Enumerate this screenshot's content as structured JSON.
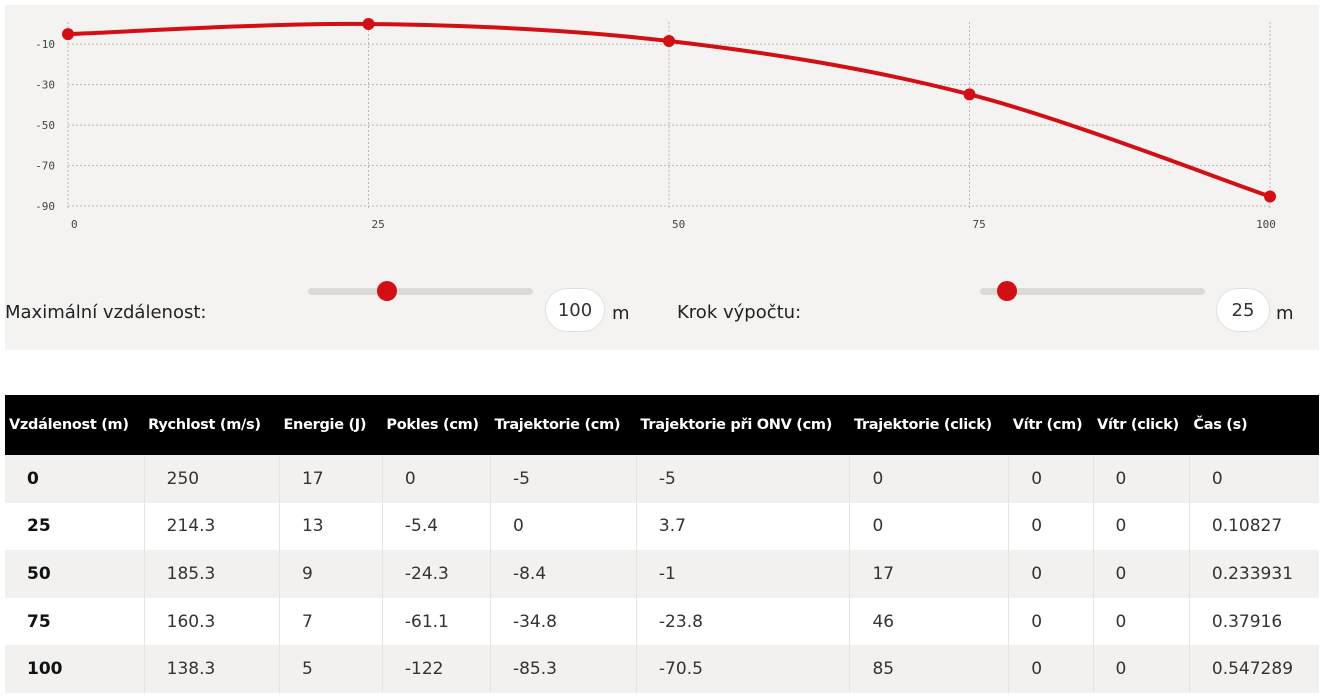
{
  "chart_data": {
    "type": "line",
    "x": [
      0,
      25,
      50,
      75,
      100
    ],
    "series": [
      {
        "values": [
          -5,
          0,
          -8.4,
          -34.8,
          -85.3
        ],
        "color": "#d30f16"
      }
    ],
    "x_ticks": [
      "0",
      "25",
      "50",
      "75",
      "100"
    ],
    "y_ticks": [
      "-10",
      "-30",
      "-50",
      "-70",
      "-90"
    ],
    "xlim": [
      0,
      100
    ],
    "ylim": [
      -92,
      1
    ],
    "grid": true,
    "title": "",
    "xlabel": "",
    "ylabel": ""
  },
  "controls": {
    "max_distance": {
      "label": "Maximální vzdálenost:",
      "value": "100",
      "unit": "m",
      "slider_fraction": 0.35
    },
    "step": {
      "label": "Krok výpočtu:",
      "value": "25",
      "unit": "m",
      "slider_fraction": 0.12
    }
  },
  "table": {
    "headers": [
      "Vzdálenost (m)",
      "Rychlost (m/s)",
      "Energie (J)",
      "Pokles (cm)",
      "Trajektorie (cm)",
      "Trajektorie při ONV (cm)",
      "Trajektorie (click)",
      "Vítr (cm)",
      "Vítr (click)",
      "Čas (s)"
    ],
    "rows": [
      [
        "0",
        "250",
        "17",
        "0",
        "-5",
        "-5",
        "0",
        "0",
        "0",
        "0"
      ],
      [
        "25",
        "214.3",
        "13",
        "-5.4",
        "0",
        "3.7",
        "0",
        "0",
        "0",
        "0.10827"
      ],
      [
        "50",
        "185.3",
        "9",
        "-24.3",
        "-8.4",
        "-1",
        "17",
        "0",
        "0",
        "0.233931"
      ],
      [
        "75",
        "160.3",
        "7",
        "-61.1",
        "-34.8",
        "-23.8",
        "46",
        "0",
        "0",
        "0.37916"
      ],
      [
        "100",
        "138.3",
        "5",
        "-122",
        "-85.3",
        "-70.5",
        "85",
        "0",
        "0",
        "0.547289"
      ]
    ]
  },
  "colors": {
    "accent": "#d30f16",
    "panel_bg": "#f4f3f2",
    "header_bg": "#000000"
  }
}
